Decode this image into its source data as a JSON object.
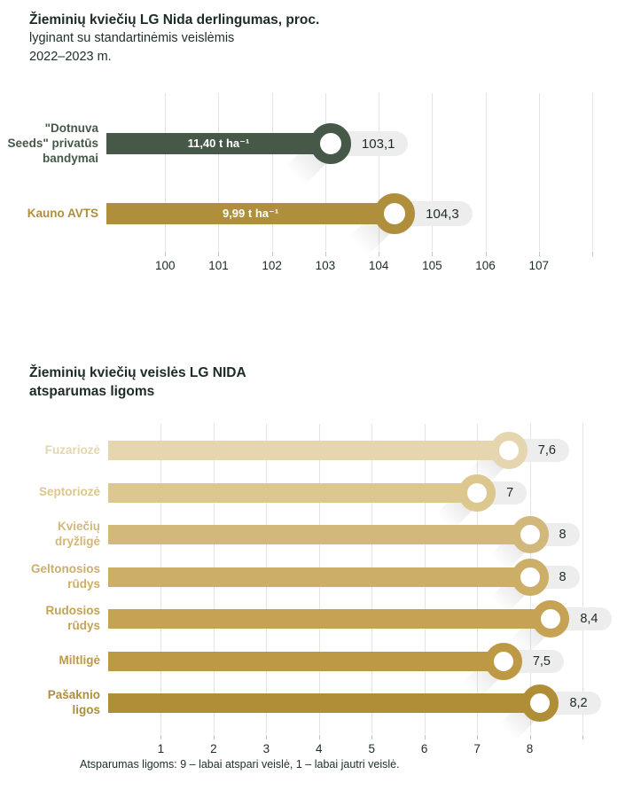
{
  "chart_data": [
    {
      "type": "bar",
      "orientation": "horizontal-lollipop",
      "title": "Žieminių kviečių LG Nida derlingumas, proc.",
      "subtitle_lines": [
        "lyginant su standartinėmis veislėmis",
        "2022–2023 m."
      ],
      "xlabel": "",
      "ylabel": "",
      "xlim": [
        98.9,
        108
      ],
      "xticks": [
        100,
        101,
        102,
        103,
        104,
        105,
        106,
        107
      ],
      "xtick_labels": [
        "100",
        "101",
        "102",
        "103",
        "104",
        "105",
        "106",
        "107"
      ],
      "edge_gridline": 108,
      "grid": "vertical",
      "legend": "none",
      "rows": [
        {
          "label_lines": [
            "\"Dotnuva",
            "Seeds\" privatūs",
            "bandymai"
          ],
          "category": "\"Dotnuva Seeds\" privatūs bandymai",
          "value": 103.1,
          "value_label": "103,1",
          "bar_annotation": "11,40 t ha⁻¹",
          "color": "#465847"
        },
        {
          "label_lines": [
            "Kauno AVTS"
          ],
          "category": "Kauno AVTS",
          "value": 104.3,
          "value_label": "104,3",
          "bar_annotation": "9,99 t ha⁻¹",
          "color": "#b08f3c"
        }
      ]
    },
    {
      "type": "bar",
      "orientation": "horizontal-lollipop",
      "title_lines": [
        "Žieminių kviečių veislės LG NIDA",
        "atsparumas ligoms"
      ],
      "title": "Žieminių kviečių veislės LG NIDA atsparumas ligoms",
      "xlabel": "",
      "ylabel": "",
      "xlim": [
        0,
        9
      ],
      "xticks": [
        1,
        2,
        3,
        4,
        5,
        6,
        7,
        8
      ],
      "xtick_labels": [
        "1",
        "2",
        "3",
        "4",
        "5",
        "6",
        "7",
        "8"
      ],
      "edge_gridline": 9,
      "grid": "vertical",
      "legend": "none",
      "note": "Atsparumas ligoms: 9 – labai atspari veislė, 1 – labai jautri veislė.",
      "rows": [
        {
          "label_lines": [
            "Fuzariozė"
          ],
          "category": "Fuzariozė",
          "value": 7.6,
          "value_label": "7,6",
          "color": "#e6d6b0"
        },
        {
          "label_lines": [
            "Septoriozė"
          ],
          "category": "Septoriozė",
          "value": 7,
          "value_label": "7",
          "color": "#dcc78f"
        },
        {
          "label_lines": [
            "Kviečių",
            "dryžligė"
          ],
          "category": "Kviečių dryžligė",
          "value": 8,
          "value_label": "8",
          "color": "#d2b87a"
        },
        {
          "label_lines": [
            "Geltonosios",
            "rūdys"
          ],
          "category": "Geltonosios rūdys",
          "value": 8,
          "value_label": "8",
          "color": "#ccae67"
        },
        {
          "label_lines": [
            "Rudosios",
            "rūdys"
          ],
          "category": "Rudosios rūdys",
          "value": 8.4,
          "value_label": "8,4",
          "color": "#c5a254"
        },
        {
          "label_lines": [
            "Miltligė"
          ],
          "category": "Miltligė",
          "value": 7.5,
          "value_label": "7,5",
          "color": "#bd9845"
        },
        {
          "label_lines": [
            "Pašaknio",
            "ligos"
          ],
          "category": "Pašaknio ligos",
          "value": 8.2,
          "value_label": "8,2",
          "color": "#b08d37"
        }
      ]
    }
  ],
  "colors": {
    "background": "#ffffff",
    "gridline": "#e4e4e4",
    "pill_background": "#ededed",
    "text_dark": "#1d2b26",
    "bar_annotation_text": "#ffffff"
  }
}
